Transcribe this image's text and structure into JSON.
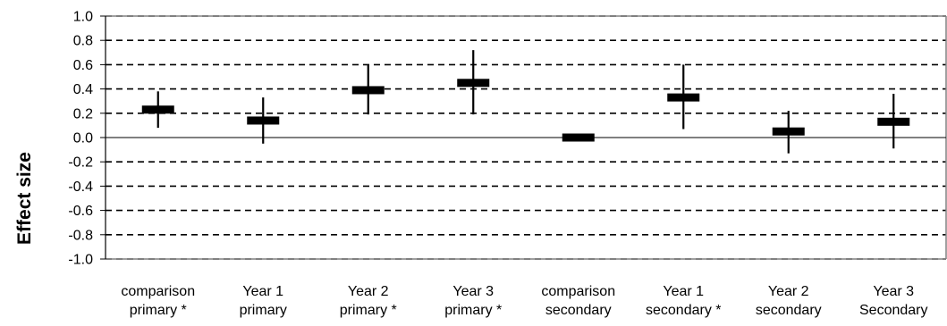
{
  "chart_data": {
    "type": "error_bar",
    "ylabel": "Effect size",
    "xlabel": "",
    "title": "",
    "ylim": [
      -1.0,
      1.0
    ],
    "yticks": [
      "1.0",
      "0.8",
      "0.6",
      "0.4",
      "0.2",
      "0.0",
      "-0.2",
      "-0.4",
      "-0.6",
      "-0.8",
      "-1.0"
    ],
    "grid": "horizontal dashed",
    "categories": [
      [
        "comparison",
        "primary *"
      ],
      [
        "Year 1",
        "primary"
      ],
      [
        "Year 2",
        "primary *"
      ],
      [
        "Year 3",
        "primary *"
      ],
      [
        "comparison",
        "secondary"
      ],
      [
        "Year 1",
        "secondary *"
      ],
      [
        "Year 2",
        "secondary"
      ],
      [
        "Year 3",
        "Secondary"
      ]
    ],
    "series": [
      {
        "values": [
          0.23,
          0.14,
          0.39,
          0.45,
          0.0,
          0.33,
          0.05,
          0.13
        ],
        "lower": [
          0.08,
          -0.05,
          0.19,
          0.19,
          0.0,
          0.07,
          -0.13,
          -0.09
        ],
        "upper": [
          0.38,
          0.33,
          0.6,
          0.72,
          0.0,
          0.6,
          0.22,
          0.36
        ]
      }
    ],
    "colors": {
      "marker": "#000000",
      "grid": "#000000",
      "axis": "#808080"
    }
  }
}
